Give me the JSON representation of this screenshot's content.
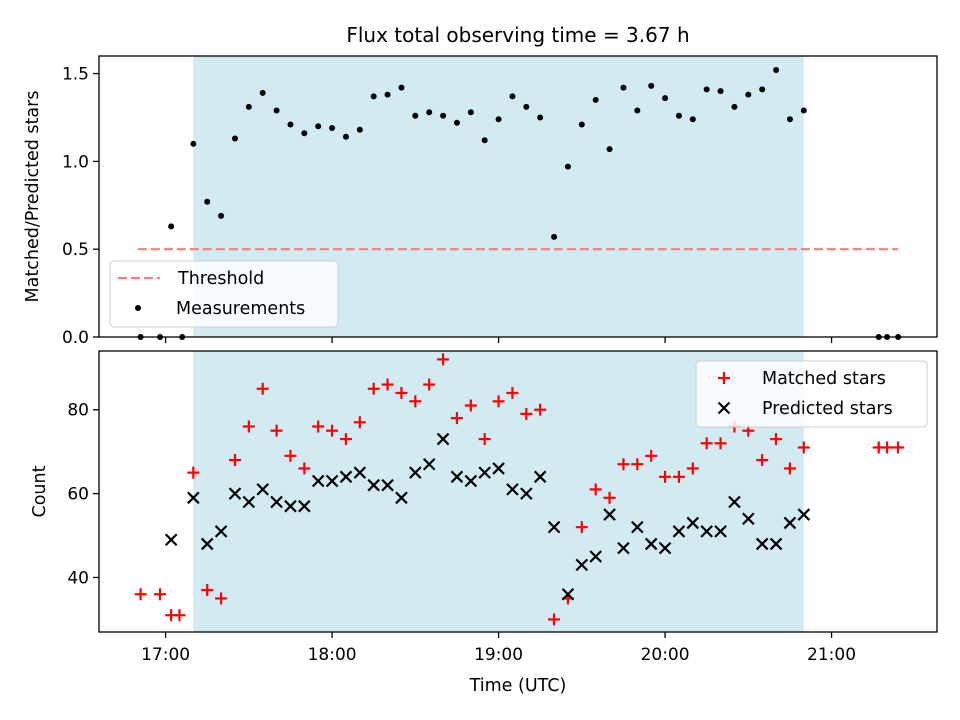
{
  "chart_data": [
    {
      "type": "scatter",
      "title": "Flux total observing time = 3.67 h",
      "xlabel": "",
      "ylabel": "Matched/Predicted stars",
      "xlim": [
        "16:36",
        "21:38"
      ],
      "ylim": [
        0,
        1.6
      ],
      "yticks": [
        0.0,
        0.5,
        1.0,
        1.5
      ],
      "ytick_labels": [
        "0.0",
        "0.5",
        "1.0",
        "1.5"
      ],
      "shaded_region": {
        "x": [
          "17:10",
          "20:50"
        ],
        "color": "#add8e6"
      },
      "legend_position": "lower-left",
      "threshold": {
        "name": "Threshold",
        "y": 0.5,
        "x": [
          "16:50",
          "21:24"
        ],
        "color": "#f08080",
        "style": "dashed"
      },
      "series": [
        {
          "name": "Measurements",
          "marker": "dot",
          "color": "#000000",
          "points": [
            [
              "16:51",
              0.0
            ],
            [
              "16:58",
              0.0
            ],
            [
              "17:02",
              0.63
            ],
            [
              "17:06",
              0.0
            ],
            [
              "17:10",
              1.1
            ],
            [
              "17:15",
              0.77
            ],
            [
              "17:20",
              0.69
            ],
            [
              "17:25",
              1.13
            ],
            [
              "17:30",
              1.31
            ],
            [
              "17:35",
              1.39
            ],
            [
              "17:40",
              1.29
            ],
            [
              "17:45",
              1.21
            ],
            [
              "17:50",
              1.16
            ],
            [
              "17:55",
              1.2
            ],
            [
              "18:00",
              1.19
            ],
            [
              "18:05",
              1.14
            ],
            [
              "18:10",
              1.18
            ],
            [
              "18:15",
              1.37
            ],
            [
              "18:20",
              1.38
            ],
            [
              "18:25",
              1.42
            ],
            [
              "18:30",
              1.26
            ],
            [
              "18:35",
              1.28
            ],
            [
              "18:40",
              1.26
            ],
            [
              "18:45",
              1.22
            ],
            [
              "18:50",
              1.28
            ],
            [
              "18:55",
              1.12
            ],
            [
              "19:00",
              1.24
            ],
            [
              "19:05",
              1.37
            ],
            [
              "19:10",
              1.31
            ],
            [
              "19:15",
              1.25
            ],
            [
              "19:20",
              0.57
            ],
            [
              "19:25",
              0.97
            ],
            [
              "19:30",
              1.21
            ],
            [
              "19:35",
              1.35
            ],
            [
              "19:40",
              1.07
            ],
            [
              "19:45",
              1.42
            ],
            [
              "19:50",
              1.29
            ],
            [
              "19:55",
              1.43
            ],
            [
              "20:00",
              1.36
            ],
            [
              "20:05",
              1.26
            ],
            [
              "20:10",
              1.24
            ],
            [
              "20:15",
              1.41
            ],
            [
              "20:20",
              1.4
            ],
            [
              "20:25",
              1.31
            ],
            [
              "20:30",
              1.38
            ],
            [
              "20:35",
              1.41
            ],
            [
              "20:40",
              1.52
            ],
            [
              "20:45",
              1.24
            ],
            [
              "20:50",
              1.29
            ],
            [
              "21:17",
              0.0
            ],
            [
              "21:20",
              0.0
            ],
            [
              "21:24",
              0.0
            ]
          ]
        }
      ]
    },
    {
      "type": "scatter",
      "title": "",
      "xlabel": "Time (UTC)",
      "ylabel": "Count",
      "xlim": [
        "16:36",
        "21:38"
      ],
      "ylim": [
        27,
        94
      ],
      "yticks": [
        40,
        60,
        80
      ],
      "ytick_labels": [
        "40",
        "60",
        "80"
      ],
      "xticks": [
        "17:00",
        "18:00",
        "19:00",
        "20:00",
        "21:00"
      ],
      "xtick_labels": [
        "17:00",
        "18:00",
        "19:00",
        "20:00",
        "21:00"
      ],
      "shaded_region": {
        "x": [
          "17:10",
          "20:50"
        ],
        "color": "#add8e6"
      },
      "legend_position": "top-right",
      "series": [
        {
          "name": "Matched stars",
          "marker": "plus",
          "color": "#ff0000",
          "points": [
            [
              "16:51",
              36
            ],
            [
              "16:58",
              36
            ],
            [
              "17:02",
              31
            ],
            [
              "17:05",
              31
            ],
            [
              "17:10",
              65
            ],
            [
              "17:15",
              37
            ],
            [
              "17:20",
              35
            ],
            [
              "17:25",
              68
            ],
            [
              "17:30",
              76
            ],
            [
              "17:35",
              85
            ],
            [
              "17:40",
              75
            ],
            [
              "17:45",
              69
            ],
            [
              "17:50",
              66
            ],
            [
              "17:55",
              76
            ],
            [
              "18:00",
              75
            ],
            [
              "18:05",
              73
            ],
            [
              "18:10",
              77
            ],
            [
              "18:15",
              85
            ],
            [
              "18:20",
              86
            ],
            [
              "18:25",
              84
            ],
            [
              "18:30",
              82
            ],
            [
              "18:35",
              86
            ],
            [
              "18:40",
              92
            ],
            [
              "18:45",
              78
            ],
            [
              "18:50",
              81
            ],
            [
              "18:55",
              73
            ],
            [
              "19:00",
              82
            ],
            [
              "19:05",
              84
            ],
            [
              "19:10",
              79
            ],
            [
              "19:15",
              80
            ],
            [
              "19:20",
              30
            ],
            [
              "19:25",
              35
            ],
            [
              "19:30",
              52
            ],
            [
              "19:35",
              61
            ],
            [
              "19:40",
              59
            ],
            [
              "19:45",
              67
            ],
            [
              "19:50",
              67
            ],
            [
              "19:55",
              69
            ],
            [
              "20:00",
              64
            ],
            [
              "20:05",
              64
            ],
            [
              "20:10",
              66
            ],
            [
              "20:15",
              72
            ],
            [
              "20:20",
              72
            ],
            [
              "20:25",
              76
            ],
            [
              "20:30",
              75
            ],
            [
              "20:35",
              68
            ],
            [
              "20:40",
              73
            ],
            [
              "20:45",
              66
            ],
            [
              "20:50",
              71
            ],
            [
              "21:17",
              71
            ],
            [
              "21:20",
              71
            ],
            [
              "21:24",
              71
            ]
          ]
        },
        {
          "name": "Predicted stars",
          "marker": "x",
          "color": "#000000",
          "points": [
            [
              "17:02",
              49
            ],
            [
              "17:10",
              59
            ],
            [
              "17:15",
              48
            ],
            [
              "17:20",
              51
            ],
            [
              "17:25",
              60
            ],
            [
              "17:30",
              58
            ],
            [
              "17:35",
              61
            ],
            [
              "17:40",
              58
            ],
            [
              "17:45",
              57
            ],
            [
              "17:50",
              57
            ],
            [
              "17:55",
              63
            ],
            [
              "18:00",
              63
            ],
            [
              "18:05",
              64
            ],
            [
              "18:10",
              65
            ],
            [
              "18:15",
              62
            ],
            [
              "18:20",
              62
            ],
            [
              "18:25",
              59
            ],
            [
              "18:30",
              65
            ],
            [
              "18:35",
              67
            ],
            [
              "18:40",
              73
            ],
            [
              "18:45",
              64
            ],
            [
              "18:50",
              63
            ],
            [
              "18:55",
              65
            ],
            [
              "19:00",
              66
            ],
            [
              "19:05",
              61
            ],
            [
              "19:10",
              60
            ],
            [
              "19:15",
              64
            ],
            [
              "19:20",
              52
            ],
            [
              "19:25",
              36
            ],
            [
              "19:30",
              43
            ],
            [
              "19:35",
              45
            ],
            [
              "19:40",
              55
            ],
            [
              "19:45",
              47
            ],
            [
              "19:50",
              52
            ],
            [
              "19:55",
              48
            ],
            [
              "20:00",
              47
            ],
            [
              "20:05",
              51
            ],
            [
              "20:10",
              53
            ],
            [
              "20:15",
              51
            ],
            [
              "20:20",
              51
            ],
            [
              "20:25",
              58
            ],
            [
              "20:30",
              54
            ],
            [
              "20:35",
              48
            ],
            [
              "20:40",
              48
            ],
            [
              "20:45",
              53
            ],
            [
              "20:50",
              55
            ]
          ]
        }
      ]
    }
  ]
}
